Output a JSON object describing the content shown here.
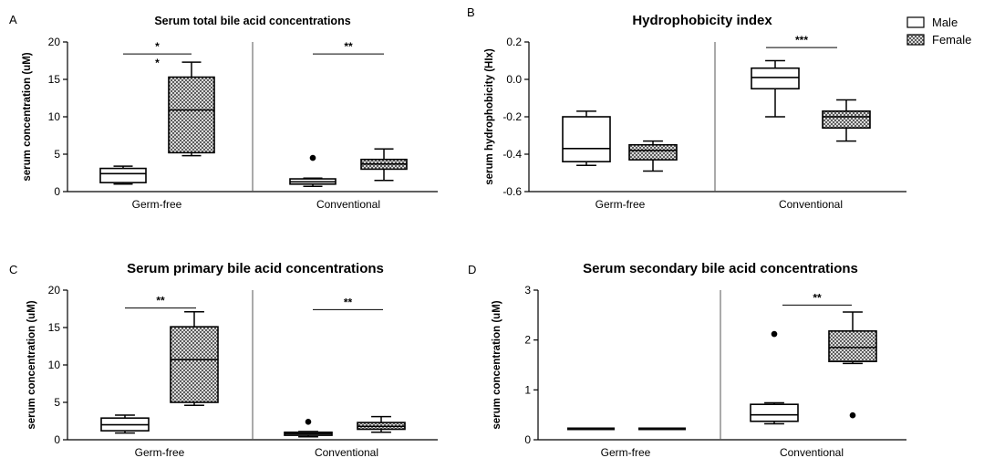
{
  "legend": {
    "entries": [
      {
        "label": "Male",
        "pattern": "white"
      },
      {
        "label": "Female",
        "pattern": "crosshatch"
      }
    ],
    "placement": "top-right"
  },
  "chart_data": [
    {
      "panel": "A",
      "type": "box",
      "title": "Serum total bile acid concentrations",
      "ylabel": "serum concentration (uM)",
      "ylim": [
        0,
        20
      ],
      "yticks": [
        "0",
        "5",
        "10",
        "15",
        "20"
      ],
      "categories": [
        "Germ-free",
        "Conventional"
      ],
      "boxes": [
        {
          "category": "Germ-free",
          "series": "Male",
          "min": 1.0,
          "q1": 1.2,
          "median": 2.4,
          "q3": 3.1,
          "max": 3.4,
          "outliers": []
        },
        {
          "category": "Germ-free",
          "series": "Female",
          "min": 4.8,
          "q1": 5.2,
          "median": 10.9,
          "q3": 15.3,
          "max": 17.3,
          "outliers": []
        },
        {
          "category": "Conventional",
          "series": "Male",
          "min": 0.7,
          "q1": 1.0,
          "median": 1.3,
          "q3": 1.7,
          "max": 1.8,
          "outliers": [
            4.5
          ]
        },
        {
          "category": "Conventional",
          "series": "Female",
          "min": 1.5,
          "q1": 3.0,
          "median": 3.7,
          "q3": 4.3,
          "max": 5.7,
          "outliers": []
        }
      ],
      "significance": [
        {
          "category": "Germ-free",
          "label": "*",
          "y": 18.4,
          "extra": "*"
        },
        {
          "category": "Conventional",
          "label": "**",
          "y": 18.4
        }
      ]
    },
    {
      "panel": "B",
      "type": "box",
      "title": "Hydrophobicity index",
      "ylabel": "serum hydrophobicity (HIx)",
      "ylim": [
        -0.6,
        0.2
      ],
      "yticks": [
        "-0.6",
        "-0.4",
        "-0.2",
        "0.0",
        "0.2"
      ],
      "categories": [
        "Germ-free",
        "Conventional"
      ],
      "boxes": [
        {
          "category": "Germ-free",
          "series": "Male",
          "min": -0.46,
          "q1": -0.44,
          "median": -0.37,
          "q3": -0.2,
          "max": -0.17,
          "outliers": []
        },
        {
          "category": "Germ-free",
          "series": "Female",
          "min": -0.49,
          "q1": -0.43,
          "median": -0.38,
          "q3": -0.35,
          "max": -0.33,
          "outliers": []
        },
        {
          "category": "Conventional",
          "series": "Male",
          "min": -0.2,
          "q1": -0.05,
          "median": 0.01,
          "q3": 0.06,
          "max": 0.1,
          "outliers": []
        },
        {
          "category": "Conventional",
          "series": "Female",
          "min": -0.33,
          "q1": -0.26,
          "median": -0.2,
          "q3": -0.17,
          "max": -0.11,
          "outliers": []
        }
      ],
      "significance": [
        {
          "category": "Conventional",
          "label": "***",
          "y": 0.17
        }
      ]
    },
    {
      "panel": "C",
      "type": "box",
      "title": "Serum primary bile acid  concentrations",
      "ylabel": "serum concentration (uM)",
      "ylim": [
        0,
        20
      ],
      "yticks": [
        "0",
        "5",
        "10",
        "15",
        "20"
      ],
      "categories": [
        "Germ-free",
        "Conventional"
      ],
      "boxes": [
        {
          "category": "Germ-free",
          "series": "Male",
          "min": 0.9,
          "q1": 1.2,
          "median": 2.0,
          "q3": 2.9,
          "max": 3.3,
          "outliers": []
        },
        {
          "category": "Germ-free",
          "series": "Female",
          "min": 4.6,
          "q1": 5.0,
          "median": 10.7,
          "q3": 15.1,
          "max": 17.1,
          "outliers": []
        },
        {
          "category": "Conventional",
          "series": "Male",
          "min": 0.4,
          "q1": 0.6,
          "median": 0.8,
          "q3": 1.0,
          "max": 1.1,
          "outliers": [
            2.4
          ]
        },
        {
          "category": "Conventional",
          "series": "Female",
          "min": 1.0,
          "q1": 1.4,
          "median": 1.8,
          "q3": 2.3,
          "max": 3.1,
          "outliers": []
        }
      ],
      "significance": [
        {
          "category": "Germ-free",
          "label": "**",
          "y": 17.6
        },
        {
          "category": "Conventional",
          "label": "**",
          "y": 17.4
        }
      ]
    },
    {
      "panel": "D",
      "type": "box",
      "title": "Serum secondary bile acid  concentrations",
      "ylabel": "serum concentration (uM)",
      "ylim": [
        0,
        3
      ],
      "yticks": [
        "0",
        "1",
        "2",
        "3"
      ],
      "categories": [
        "Germ-free",
        "Conventional"
      ],
      "boxes": [
        {
          "category": "Germ-free",
          "series": "Male",
          "min": 0.22,
          "q1": 0.22,
          "median": 0.22,
          "q3": 0.22,
          "max": 0.22,
          "outliers": []
        },
        {
          "category": "Germ-free",
          "series": "Female",
          "min": 0.22,
          "q1": 0.22,
          "median": 0.22,
          "q3": 0.22,
          "max": 0.22,
          "outliers": []
        },
        {
          "category": "Conventional",
          "series": "Male",
          "min": 0.32,
          "q1": 0.37,
          "median": 0.5,
          "q3": 0.71,
          "max": 0.74,
          "outliers": [
            2.12
          ]
        },
        {
          "category": "Conventional",
          "series": "Female",
          "min": 1.53,
          "q1": 1.57,
          "median": 1.85,
          "q3": 2.18,
          "max": 2.56,
          "outliers": [
            0.49
          ]
        }
      ],
      "significance": [
        {
          "category": "Conventional",
          "label": "**",
          "y": 2.7
        }
      ]
    }
  ]
}
